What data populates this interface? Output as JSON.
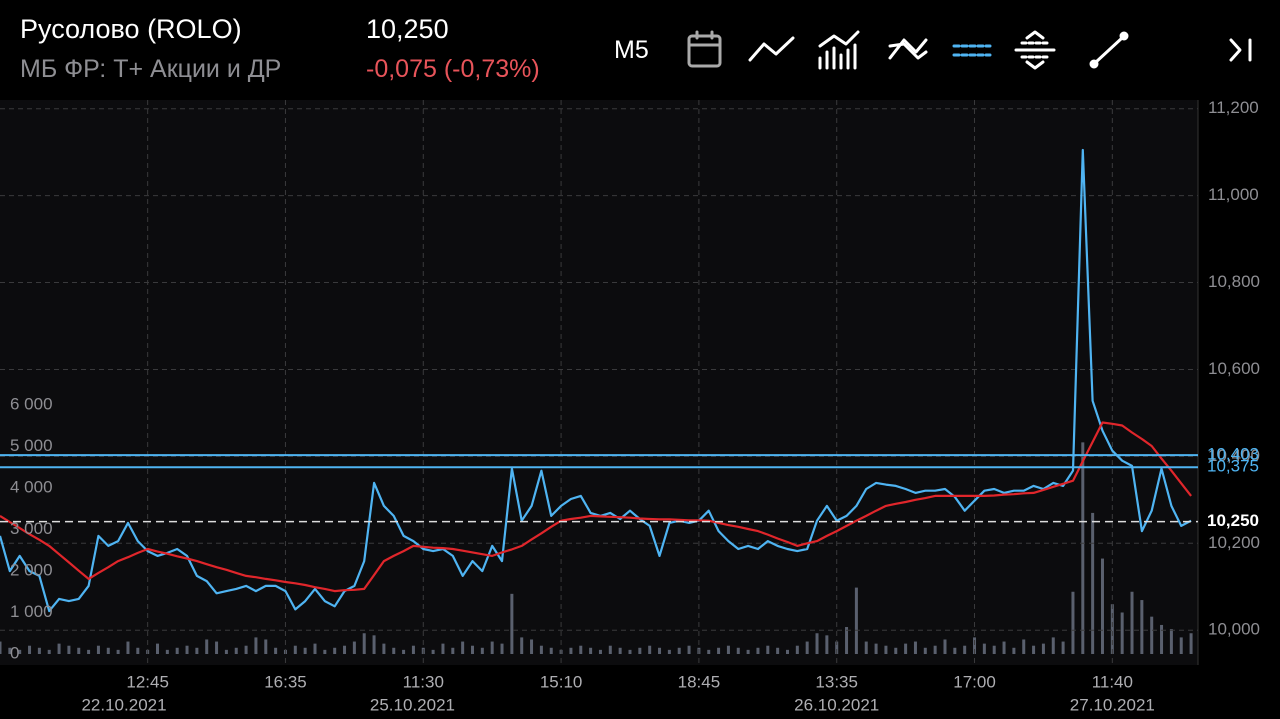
{
  "header": {
    "title": "Русолово (ROLO)",
    "market": "МБ ФР: Т+ Акции и ДР",
    "price": "10,250",
    "change": "-0,075 (-0,73%)",
    "timeframe": "M5"
  },
  "chart_data": [
    {
      "type": "line",
      "xlim": [
        0,
        121.5
      ],
      "ylim": [
        9920,
        11220
      ],
      "yticks": [
        {
          "value": 10000,
          "label": "10,000"
        },
        {
          "value": 10200,
          "label": "10,200"
        },
        {
          "value": 10400,
          "label": "10,400"
        },
        {
          "value": 10600,
          "label": "10,600"
        },
        {
          "value": 10800,
          "label": "10,800"
        },
        {
          "value": 11000,
          "label": "11,000"
        },
        {
          "value": 11200,
          "label": "11,200"
        }
      ],
      "xticks": [
        {
          "value": 15,
          "label": "12:45"
        },
        {
          "value": 29,
          "label": "16:35"
        },
        {
          "value": 43,
          "label": "11:30"
        },
        {
          "value": 57,
          "label": "15:10"
        },
        {
          "value": 71,
          "label": "18:45"
        },
        {
          "value": 85,
          "label": "13:35"
        },
        {
          "value": 99,
          "label": "17:00"
        },
        {
          "value": 113,
          "label": "11:40"
        }
      ],
      "date_ticks": [
        {
          "value": 12.6,
          "label": "22.10.2021"
        },
        {
          "value": 41.9,
          "label": "25.10.2021"
        },
        {
          "value": 85,
          "label": "26.10.2021"
        },
        {
          "value": 113,
          "label": "27.10.2021"
        }
      ],
      "levels": [
        {
          "value": 10403,
          "label": "10,403"
        },
        {
          "value": 10375,
          "label": "10,375"
        }
      ],
      "last": {
        "value": 10250,
        "label": "10,250"
      },
      "grid": true,
      "series": [
        {
          "color": "#4fb4f2",
          "values": [
            10217,
            10136,
            10171,
            10136,
            10125,
            10044,
            10072,
            10067,
            10072,
            10102,
            10217,
            10194,
            10205,
            10247,
            10205,
            10182,
            10171,
            10178,
            10187,
            10171,
            10125,
            10113,
            10085,
            10090,
            10095,
            10102,
            10090,
            10102,
            10102,
            10090,
            10048,
            10067,
            10095,
            10067,
            10055,
            10090,
            10102,
            10159,
            10339,
            10286,
            10263,
            10217,
            10205,
            10187,
            10182,
            10187,
            10171,
            10125,
            10159,
            10136,
            10194,
            10159,
            10372,
            10252,
            10286,
            10367,
            10263,
            10286,
            10302,
            10309,
            10270,
            10263,
            10270,
            10256,
            10275,
            10256,
            10240,
            10171,
            10247,
            10252,
            10247,
            10252,
            10275,
            10228,
            10205,
            10187,
            10194,
            10187,
            10205,
            10194,
            10187,
            10182,
            10187,
            10252,
            10286,
            10252,
            10263,
            10286,
            10325,
            10339,
            10335,
            10332,
            10325,
            10316,
            10321,
            10321,
            10325,
            10307,
            10275,
            10298,
            10321,
            10325,
            10316,
            10321,
            10321,
            10332,
            10325,
            10339,
            10332,
            10367,
            11105,
            10528,
            10459,
            10413,
            10390,
            10378,
            10228,
            10275,
            10372,
            10286,
            10240,
            10252
          ]
        },
        {
          "color": "#e0262b",
          "values": [
            10263,
            10249,
            10235,
            10221,
            10208,
            10194,
            10175,
            10156,
            10137,
            10118,
            10132,
            10145,
            10159,
            10168,
            10178,
            10187,
            10181,
            10176,
            10170,
            10165,
            10159,
            10152,
            10145,
            10139,
            10132,
            10125,
            10122,
            10118,
            10115,
            10111,
            10108,
            10104,
            10099,
            10095,
            10090,
            10092,
            10093,
            10095,
            10127,
            10159,
            10171,
            10182,
            10194,
            10192,
            10190,
            10189,
            10187,
            10183,
            10179,
            10175,
            10171,
            10179,
            10186,
            10194,
            10209,
            10223,
            10238,
            10252,
            10256,
            10259,
            10263,
            10262,
            10261,
            10260,
            10259,
            10257,
            10256,
            10255,
            10255,
            10254,
            10253,
            10253,
            10252,
            10247,
            10242,
            10238,
            10233,
            10228,
            10220,
            10211,
            10203,
            10194,
            10200,
            10205,
            10217,
            10228,
            10240,
            10252,
            10263,
            10275,
            10286,
            10291,
            10295,
            10300,
            10304,
            10309,
            10309,
            10309,
            10309,
            10309,
            10309,
            10310,
            10312,
            10313,
            10315,
            10316,
            10323,
            10330,
            10337,
            10344,
            10389,
            10433,
            10478,
            10475,
            10471,
            10455,
            10440,
            10424,
            10395,
            10367,
            10338,
            10309
          ]
        }
      ]
    },
    {
      "type": "bar",
      "color": "#5a606e",
      "ylim": [
        -265,
        13350
      ],
      "yticks": [
        0,
        {
          "value": 1000,
          "label": "1 000"
        },
        {
          "value": 2000,
          "label": "2 000"
        },
        {
          "value": 3000,
          "label": "3 000"
        },
        {
          "value": 4000,
          "label": "4 000"
        },
        {
          "value": 5000,
          "label": "5 000"
        },
        {
          "value": 6000,
          "label": "6 000"
        }
      ],
      "values": [
        300,
        150,
        100,
        200,
        150,
        100,
        250,
        200,
        150,
        100,
        200,
        150,
        100,
        300,
        150,
        100,
        250,
        100,
        150,
        200,
        150,
        350,
        300,
        100,
        150,
        200,
        400,
        350,
        150,
        100,
        200,
        150,
        250,
        100,
        150,
        200,
        300,
        500,
        450,
        250,
        150,
        100,
        200,
        150,
        100,
        250,
        150,
        300,
        200,
        150,
        300,
        250,
        1450,
        400,
        350,
        200,
        150,
        100,
        150,
        200,
        150,
        100,
        200,
        150,
        100,
        150,
        200,
        150,
        100,
        150,
        200,
        150,
        100,
        150,
        200,
        150,
        100,
        150,
        200,
        150,
        100,
        200,
        300,
        500,
        450,
        300,
        650,
        1600,
        300,
        250,
        200,
        150,
        250,
        300,
        150,
        200,
        350,
        150,
        200,
        400,
        250,
        200,
        300,
        150,
        350,
        200,
        250,
        400,
        300,
        1500,
        5100,
        3400,
        2300,
        1200,
        1000,
        1500,
        1300,
        900,
        700,
        600,
        400,
        500
      ]
    }
  ]
}
